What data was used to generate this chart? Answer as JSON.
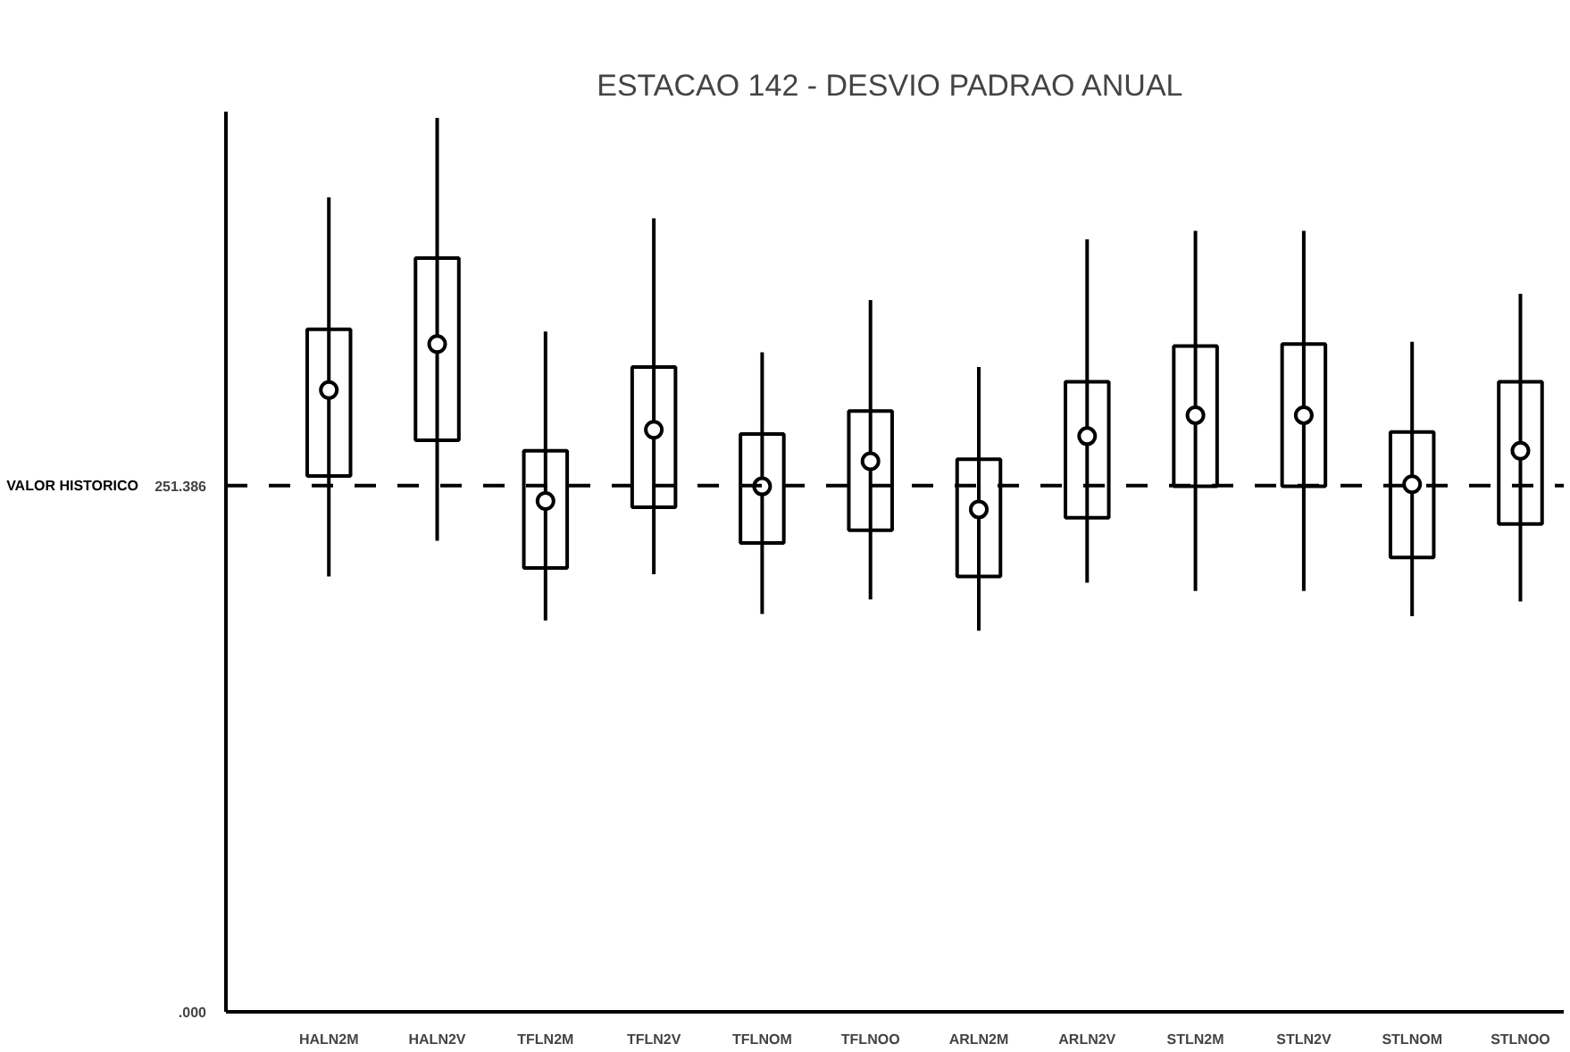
{
  "chart_data": {
    "type": "box",
    "title": "ESTACAO 142 -  DESVIO PADRAO ANUAL",
    "categories": [
      "HALN2M",
      "HALN2V",
      "TFLN2M",
      "TFLN2V",
      "TFLNOM",
      "TFLNOO",
      "ARLN2M",
      "ARLN2V",
      "STLN2M",
      "STLN2V",
      "STLNOM",
      "STLNOO"
    ],
    "boxes": [
      {
        "low": 208,
        "q1": 256,
        "median": 297,
        "q3": 326,
        "high": 389
      },
      {
        "low": 225,
        "q1": 273,
        "median": 319,
        "q3": 360,
        "high": 427
      },
      {
        "low": 187,
        "q1": 212,
        "median": 244,
        "q3": 268,
        "high": 325
      },
      {
        "low": 209,
        "q1": 241,
        "median": 278,
        "q3": 308,
        "high": 379
      },
      {
        "low": 190,
        "q1": 224,
        "median": 251,
        "q3": 276,
        "high": 315
      },
      {
        "low": 197,
        "q1": 230,
        "median": 263,
        "q3": 287,
        "high": 340
      },
      {
        "low": 182,
        "q1": 208,
        "median": 240,
        "q3": 264,
        "high": 308
      },
      {
        "low": 205,
        "q1": 236,
        "median": 275,
        "q3": 301,
        "high": 369
      },
      {
        "low": 201,
        "q1": 251,
        "median": 285,
        "q3": 318,
        "high": 373
      },
      {
        "low": 201,
        "q1": 251,
        "median": 285,
        "q3": 319,
        "high": 373
      },
      {
        "low": 189,
        "q1": 217,
        "median": 252,
        "q3": 277,
        "high": 320
      },
      {
        "low": 196,
        "q1": 233,
        "median": 268,
        "q3": 301,
        "high": 343
      }
    ],
    "color": "#000000",
    "marker": "circle",
    "ylim": [
      0,
      430
    ],
    "yticks": [
      {
        "value": 0,
        "label": ".000"
      },
      {
        "value": 251.386,
        "label": "251.386"
      }
    ],
    "ref_lines": [
      {
        "axis": "y",
        "value": 251.386,
        "label": "VALOR HISTORICO",
        "line_style": "dashed"
      }
    ],
    "grid": false
  }
}
